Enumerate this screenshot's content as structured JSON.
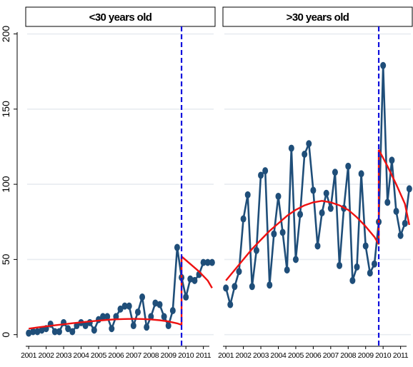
{
  "chart_data": {
    "type": "line",
    "layout": "two-panel",
    "y_ticks": [
      0,
      50,
      100,
      150,
      200
    ],
    "ylim": [
      -3,
      205
    ],
    "x_tick_labels": [
      "2001",
      "2002",
      "2003",
      "2004",
      "2005",
      "2006",
      "2007",
      "2008",
      "2009",
      "2010",
      "2011"
    ],
    "grid": true,
    "legend": "none",
    "colors": {
      "series": "#1f4e79",
      "fit": "#ee1111",
      "cutoff": "#1010dd",
      "grid": "#e8ecf0"
    },
    "panels": [
      {
        "title": "<30 years old",
        "cutoff_x": 2009.75,
        "series": {
          "x": [
            2001.0,
            2001.25,
            2001.5,
            2001.75,
            2002.0,
            2002.25,
            2002.5,
            2002.75,
            2003.0,
            2003.25,
            2003.5,
            2003.75,
            2004.0,
            2004.25,
            2004.5,
            2004.75,
            2005.0,
            2005.25,
            2005.5,
            2005.75,
            2006.0,
            2006.25,
            2006.5,
            2006.75,
            2007.0,
            2007.25,
            2007.5,
            2007.75,
            2008.0,
            2008.25,
            2008.5,
            2008.75,
            2009.0,
            2009.25,
            2009.5,
            2009.75,
            2010.0,
            2010.25,
            2010.5,
            2010.75,
            2011.0,
            2011.25,
            2011.5
          ],
          "y": [
            1,
            2,
            2,
            3,
            4,
            7,
            2,
            2,
            8,
            4,
            2,
            6,
            8,
            6,
            8,
            3,
            10,
            12,
            12,
            4,
            12,
            17,
            19,
            19,
            6,
            15,
            25,
            5,
            12,
            21,
            20,
            12,
            6,
            16,
            58,
            38,
            25,
            37,
            36,
            40,
            48,
            48,
            48
          ]
        },
        "fit_pre": {
          "x": [
            2001.0,
            2001.5,
            2002.0,
            2002.5,
            2003.0,
            2003.5,
            2004.0,
            2004.5,
            2005.0,
            2005.5,
            2006.0,
            2006.5,
            2007.0,
            2007.5,
            2008.0,
            2008.5,
            2009.0,
            2009.5,
            2009.75
          ],
          "y": [
            4,
            4.8,
            5.5,
            6.2,
            6.9,
            7.6,
            8.2,
            8.8,
            9.3,
            9.8,
            10.2,
            10.4,
            10.5,
            10.4,
            10.1,
            9.6,
            8.8,
            7.5,
            6.5
          ]
        },
        "fit_post": {
          "x": [
            2009.75,
            2010.25,
            2010.75,
            2011.25,
            2011.5
          ],
          "y": [
            52,
            47,
            42,
            36,
            31
          ]
        }
      },
      {
        "title": ">30 years old",
        "cutoff_x": 2009.75,
        "series": {
          "x": [
            2001.0,
            2001.25,
            2001.5,
            2001.75,
            2002.0,
            2002.25,
            2002.5,
            2002.75,
            2003.0,
            2003.25,
            2003.5,
            2003.75,
            2004.0,
            2004.25,
            2004.5,
            2004.75,
            2005.0,
            2005.25,
            2005.5,
            2005.75,
            2006.0,
            2006.25,
            2006.5,
            2006.75,
            2007.0,
            2007.25,
            2007.5,
            2007.75,
            2008.0,
            2008.25,
            2008.5,
            2008.75,
            2009.0,
            2009.25,
            2009.5,
            2009.75,
            2010.0,
            2010.25,
            2010.5,
            2010.75,
            2011.0,
            2011.25,
            2011.5
          ],
          "y": [
            31,
            20,
            32,
            42,
            77,
            93,
            32,
            56,
            106,
            109,
            33,
            67,
            92,
            68,
            43,
            124,
            50,
            80,
            120,
            127,
            96,
            59,
            81,
            94,
            84,
            108,
            46,
            84,
            112,
            36,
            45,
            107,
            59,
            41,
            47,
            75,
            179,
            88,
            116,
            82,
            66,
            74,
            97
          ]
        },
        "fit_pre": {
          "x": [
            2001.0,
            2001.5,
            2002.0,
            2002.5,
            2003.0,
            2003.5,
            2004.0,
            2004.5,
            2005.0,
            2005.5,
            2006.0,
            2006.5,
            2007.0,
            2007.5,
            2008.0,
            2008.5,
            2009.0,
            2009.5,
            2009.75
          ],
          "y": [
            36,
            43,
            50,
            57,
            63,
            69,
            74,
            79,
            83,
            86,
            88,
            89,
            88,
            86,
            83,
            78,
            72,
            65,
            60
          ]
        },
        "fit_post": {
          "x": [
            2009.75,
            2010.25,
            2010.75,
            2011.25,
            2011.5
          ],
          "y": [
            123,
            112,
            100,
            87,
            73
          ]
        }
      }
    ]
  }
}
